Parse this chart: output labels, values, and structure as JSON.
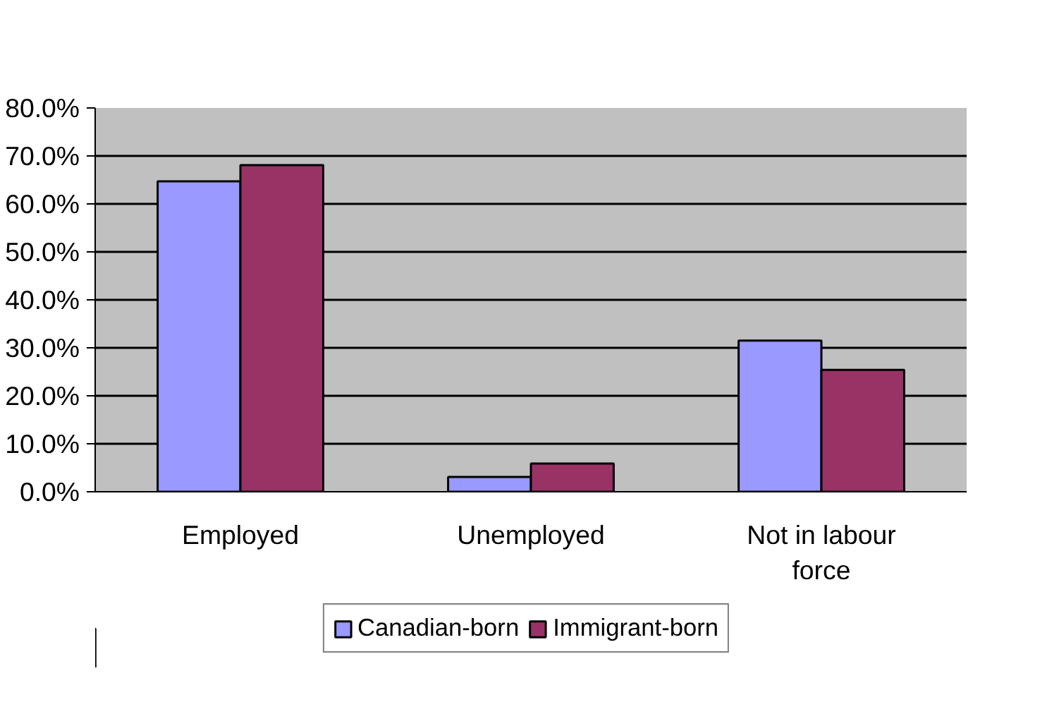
{
  "chart_data": {
    "type": "bar",
    "categories": [
      "Employed",
      "Unemployed",
      "Not in labour\nforce"
    ],
    "series": [
      {
        "name": "Canadian-born",
        "color": "#9999ff",
        "values": [
          64.7,
          3.1,
          31.5
        ]
      },
      {
        "name": "Immigrant-born",
        "color": "#993366",
        "values": [
          68.1,
          5.9,
          25.4
        ]
      }
    ],
    "ylim": [
      0,
      80
    ],
    "yticks": [
      {
        "value": 0,
        "label": "0.0%"
      },
      {
        "value": 10,
        "label": "10.0%"
      },
      {
        "value": 20,
        "label": "20.0%"
      },
      {
        "value": 30,
        "label": "30.0%"
      },
      {
        "value": 40,
        "label": "40.0%"
      },
      {
        "value": 50,
        "label": "50.0%"
      },
      {
        "value": 60,
        "label": "60.0%"
      },
      {
        "value": 70,
        "label": "70.0%"
      },
      {
        "value": 80,
        "label": "80.0%"
      }
    ],
    "grid": "y",
    "legend": "bottom"
  }
}
